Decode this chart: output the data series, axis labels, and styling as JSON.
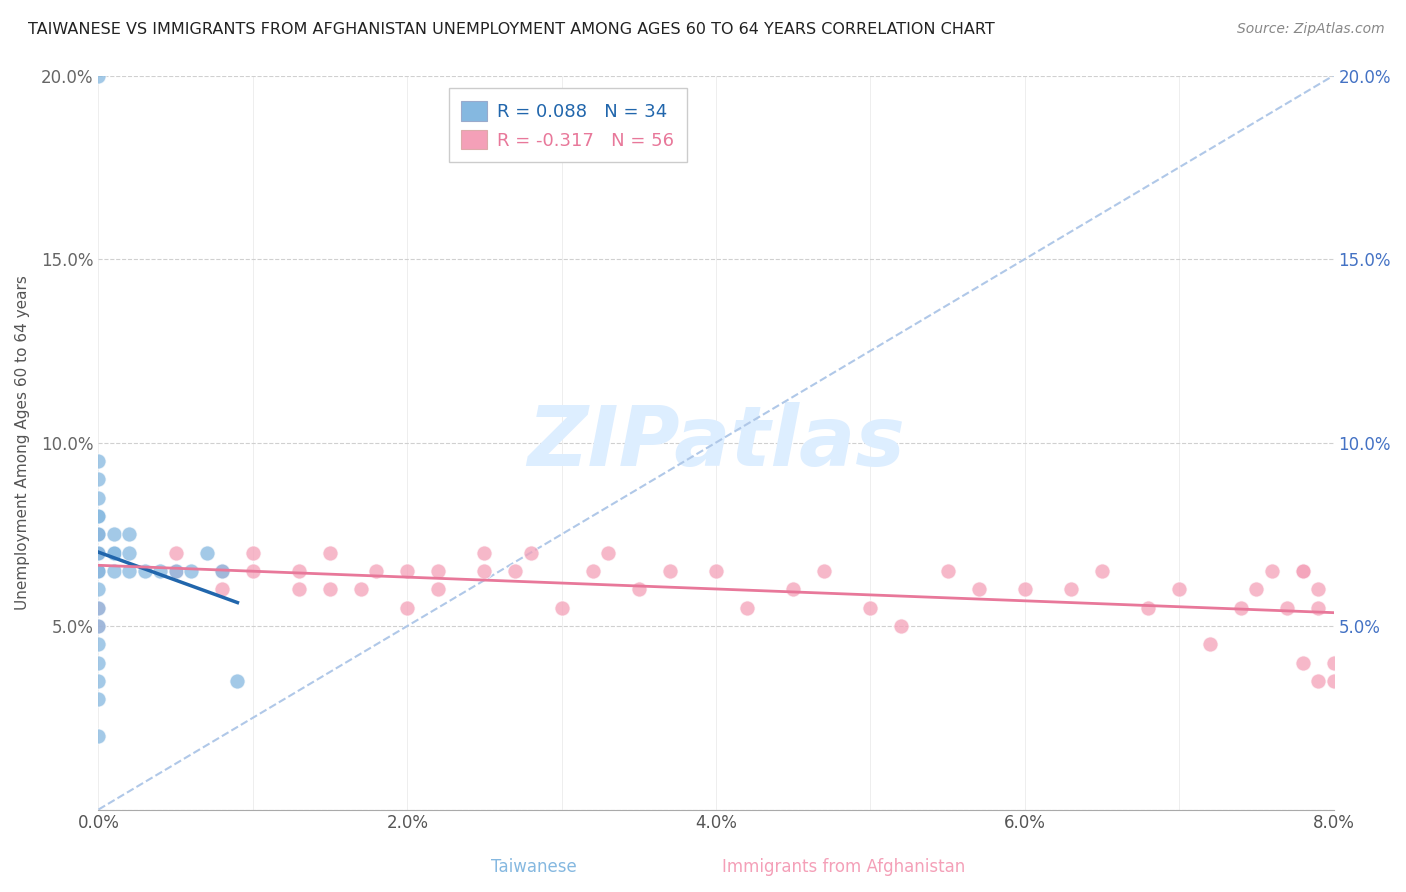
{
  "title": "TAIWANESE VS IMMIGRANTS FROM AFGHANISTAN UNEMPLOYMENT AMONG AGES 60 TO 64 YEARS CORRELATION CHART",
  "source": "Source: ZipAtlas.com",
  "ylabel": "Unemployment Among Ages 60 to 64 years",
  "xlabel_taiwanese": "Taiwanese",
  "xlabel_afghan": "Immigrants from Afghanistan",
  "xmin": 0.0,
  "xmax": 0.08,
  "ymin": 0.0,
  "ymax": 0.2,
  "watermark": "ZIPatlas",
  "legend_taiwanese": {
    "R": 0.088,
    "N": 34
  },
  "legend_afghan": {
    "R": -0.317,
    "N": 56
  },
  "color_taiwanese": "#85b8e0",
  "color_afghan": "#f4a0b8",
  "color_trend_taiwanese": "#2166ac",
  "color_trend_afghan": "#e8789a",
  "color_trend_dashed": "#b0c8e8",
  "taiwanese_x": [
    0.0,
    0.0,
    0.0,
    0.0,
    0.0,
    0.0,
    0.0,
    0.0,
    0.0,
    0.0,
    0.0,
    0.0,
    0.0,
    0.0,
    0.0,
    0.0,
    0.0,
    0.0,
    0.0,
    0.0,
    0.001,
    0.001,
    0.001,
    0.001,
    0.002,
    0.002,
    0.002,
    0.003,
    0.004,
    0.005,
    0.006,
    0.007,
    0.008,
    0.009
  ],
  "taiwanese_y": [
    0.02,
    0.03,
    0.035,
    0.04,
    0.045,
    0.05,
    0.055,
    0.06,
    0.065,
    0.07,
    0.075,
    0.08,
    0.085,
    0.09,
    0.095,
    0.2,
    0.065,
    0.07,
    0.075,
    0.08,
    0.065,
    0.07,
    0.075,
    0.07,
    0.065,
    0.07,
    0.075,
    0.065,
    0.065,
    0.065,
    0.065,
    0.07,
    0.065,
    0.035
  ],
  "afghan_x": [
    0.0,
    0.0,
    0.0,
    0.0,
    0.0,
    0.005,
    0.005,
    0.008,
    0.008,
    0.01,
    0.01,
    0.013,
    0.013,
    0.015,
    0.015,
    0.017,
    0.018,
    0.02,
    0.02,
    0.022,
    0.022,
    0.025,
    0.025,
    0.027,
    0.028,
    0.03,
    0.032,
    0.033,
    0.035,
    0.037,
    0.04,
    0.042,
    0.045,
    0.047,
    0.05,
    0.052,
    0.055,
    0.057,
    0.06,
    0.063,
    0.065,
    0.068,
    0.07,
    0.072,
    0.074,
    0.075,
    0.076,
    0.077,
    0.078,
    0.079,
    0.078,
    0.079,
    0.079,
    0.08,
    0.078,
    0.08
  ],
  "afghan_y": [
    0.05,
    0.055,
    0.065,
    0.07,
    0.075,
    0.065,
    0.07,
    0.06,
    0.065,
    0.065,
    0.07,
    0.06,
    0.065,
    0.06,
    0.07,
    0.06,
    0.065,
    0.055,
    0.065,
    0.06,
    0.065,
    0.065,
    0.07,
    0.065,
    0.07,
    0.055,
    0.065,
    0.07,
    0.06,
    0.065,
    0.065,
    0.055,
    0.06,
    0.065,
    0.055,
    0.05,
    0.065,
    0.06,
    0.06,
    0.06,
    0.065,
    0.055,
    0.06,
    0.045,
    0.055,
    0.06,
    0.065,
    0.055,
    0.065,
    0.035,
    0.04,
    0.055,
    0.06,
    0.035,
    0.065,
    0.04
  ],
  "yticks_left": [
    0.0,
    0.05,
    0.1,
    0.15,
    0.2
  ],
  "ytick_labels_left": [
    "",
    "5.0%",
    "10.0%",
    "15.0%",
    "20.0%"
  ],
  "ytick_labels_right": [
    "",
    "5.0%",
    "10.0%",
    "15.0%",
    "20.0%"
  ],
  "xticks": [
    0.0,
    0.01,
    0.02,
    0.03,
    0.04,
    0.05,
    0.06,
    0.07,
    0.08
  ],
  "xtick_labels": [
    "0.0%",
    "",
    "2.0%",
    "",
    "4.0%",
    "",
    "6.0%",
    "",
    "8.0%"
  ],
  "color_right_labels": "#4472c4",
  "color_left_labels": "#666666",
  "color_xtick_labels": "#555555"
}
